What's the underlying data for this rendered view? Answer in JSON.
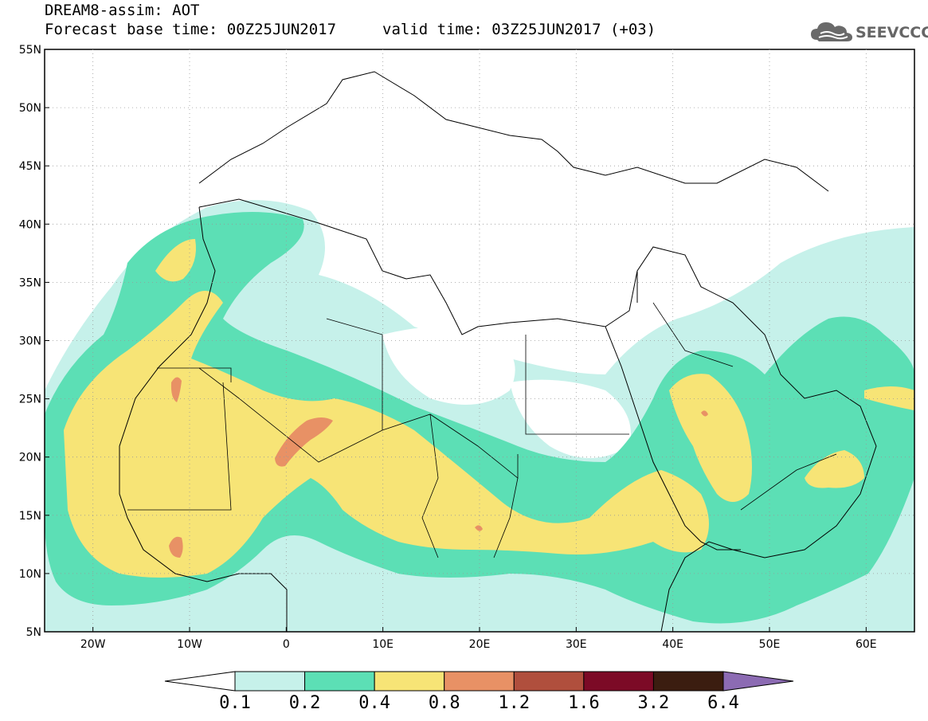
{
  "header": {
    "title": "DREAM8-assim: AOT",
    "base_time": "Forecast base time: 00Z25JUN2017",
    "valid_time": "valid time: 03Z25JUN2017 (+03)"
  },
  "logo": {
    "text": "SEEVCCC",
    "icon": "cloud-icon"
  },
  "axes": {
    "lat_labels": [
      "55N",
      "50N",
      "45N",
      "40N",
      "35N",
      "30N",
      "25N",
      "20N",
      "15N",
      "10N",
      "5N"
    ],
    "lon_labels": [
      "20W",
      "10W",
      "0",
      "10E",
      "20E",
      "30E",
      "40E",
      "50E",
      "60E"
    ],
    "lat_range": [
      5,
      55
    ],
    "lon_range": [
      -25,
      65
    ]
  },
  "legend": {
    "levels": [
      "0.1",
      "0.2",
      "0.4",
      "0.8",
      "1.2",
      "1.6",
      "3.2",
      "6.4"
    ],
    "colors": [
      "#ffffff",
      "#c6f1ea",
      "#5cdfb5",
      "#f7e476",
      "#e89165",
      "#b04f3d",
      "#7c0a26",
      "#3b1d10",
      "#8c6bb3"
    ]
  }
}
